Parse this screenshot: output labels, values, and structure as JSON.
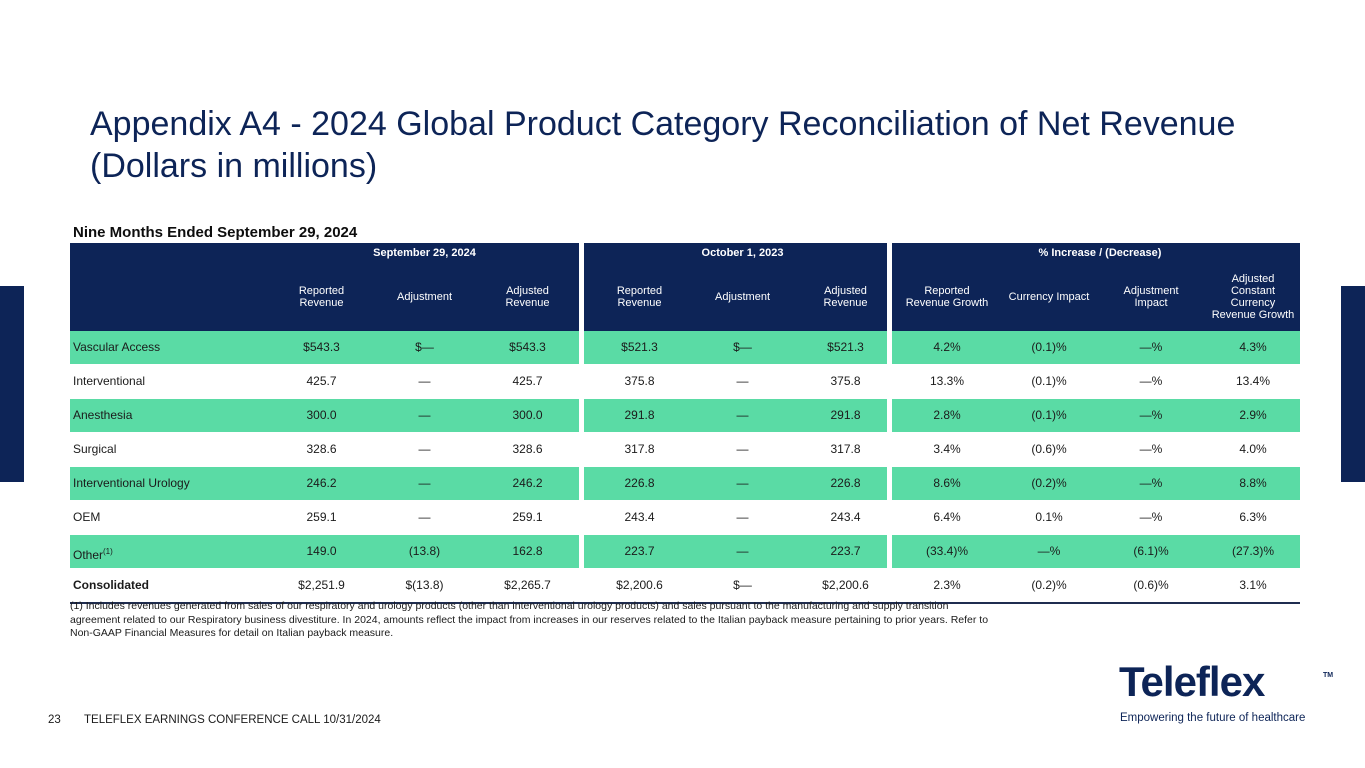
{
  "slide": {
    "title_line1": "Appendix A4 - 2024 Global Product Category Reconciliation of Net Revenue",
    "title_line2": "(Dollars in millions)",
    "section_title": "Nine Months Ended September 29, 2024",
    "page_number": "23",
    "footer_text": "TELEFLEX EARNINGS CONFERENCE CALL 10/31/2024",
    "footnote": "(1) Includes revenues generated from sales of our respiratory and urology products (other than interventional urology products) and sales pursuant to the manufacturing and supply transition agreement related to our Respiratory business divestiture. In 2024, amounts reflect the impact from increases in our reserves related to the Italian payback measure pertaining to prior years. Refer to Non-GAAP Financial Measures for detail on Italian payback measure."
  },
  "logo": {
    "wordmark": "Teleflex",
    "trademark": "TM",
    "tagline": "Empowering the future of healthcare",
    "color": "#0d2457"
  },
  "table": {
    "groups": [
      "September 29, 2024",
      "October 1, 2023",
      "% Increase / (Decrease)"
    ],
    "columns": [
      "Reported\nRevenue",
      "Adjustment",
      "Adjusted\nRevenue",
      "Reported\nRevenue",
      "Adjustment",
      "Adjusted\nRevenue",
      "Reported\nRevenue Growth",
      "Currency Impact",
      "Adjustment\nImpact",
      "Adjusted\nConstant\nCurrency\nRevenue Growth"
    ],
    "rows": [
      {
        "label": "Vascular Access",
        "footnote_ref": "",
        "values": [
          "$543.3",
          "$—",
          "$543.3",
          "$521.3",
          "$—",
          "$521.3",
          "4.2%",
          "(0.1)%",
          "—%",
          "4.3%"
        ]
      },
      {
        "label": "Interventional",
        "footnote_ref": "",
        "values": [
          "425.7",
          "—",
          "425.7",
          "375.8",
          "—",
          "375.8",
          "13.3%",
          "(0.1)%",
          "—%",
          "13.4%"
        ]
      },
      {
        "label": "Anesthesia",
        "footnote_ref": "",
        "values": [
          "300.0",
          "—",
          "300.0",
          "291.8",
          "—",
          "291.8",
          "2.8%",
          "(0.1)%",
          "—%",
          "2.9%"
        ]
      },
      {
        "label": "Surgical",
        "footnote_ref": "",
        "values": [
          "328.6",
          "—",
          "328.6",
          "317.8",
          "—",
          "317.8",
          "3.4%",
          "(0.6)%",
          "—%",
          "4.0%"
        ]
      },
      {
        "label": "Interventional Urology",
        "footnote_ref": "",
        "values": [
          "246.2",
          "—",
          "246.2",
          "226.8",
          "—",
          "226.8",
          "8.6%",
          "(0.2)%",
          "—%",
          "8.8%"
        ]
      },
      {
        "label": "OEM",
        "footnote_ref": "",
        "values": [
          "259.1",
          "—",
          "259.1",
          "243.4",
          "—",
          "243.4",
          "6.4%",
          "0.1%",
          "—%",
          "6.3%"
        ]
      },
      {
        "label": "Other",
        "footnote_ref": "(1)",
        "values": [
          "149.0",
          "(13.8)",
          "162.8",
          "223.7",
          "—",
          "223.7",
          "(33.4)%",
          "—%",
          "(6.1)%",
          "(27.3)%"
        ]
      },
      {
        "label": "Consolidated",
        "footnote_ref": "",
        "values": [
          "$2,251.9",
          "$(13.8)",
          "$2,265.7",
          "$2,200.6",
          "$—",
          "$2,200.6",
          "2.3%",
          "(0.2)%",
          "(0.6)%",
          "3.1%"
        ]
      }
    ],
    "header_color": "#0d2457",
    "shade_color": "#5adba5"
  }
}
